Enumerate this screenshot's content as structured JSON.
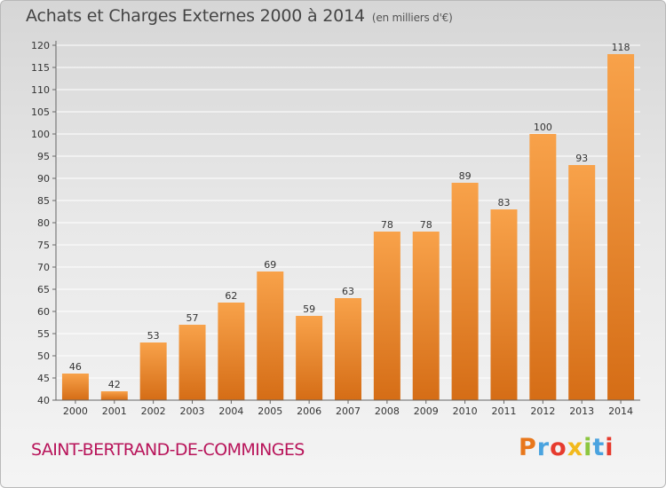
{
  "header": {
    "title": "Achats et Charges Externes 2000 à 2014",
    "unit": "(en milliers d'€)"
  },
  "footer": {
    "commune": "SAINT-BERTRAND-DE-COMMINGES",
    "brand_letters": [
      "P",
      "r",
      "o",
      "x",
      "i",
      "t",
      "i"
    ],
    "brand_colors": [
      "#e8771b",
      "#4aa3df",
      "#e63b2e",
      "#f2b91c",
      "#8cc63f",
      "#4aa3df",
      "#e63b2e"
    ]
  },
  "colors": {
    "bar_top": "#f8a24a",
    "bar_bottom": "#d56d16",
    "grid": "#ffffff",
    "axis": "#666666",
    "label": "#333333"
  },
  "chart_data": {
    "type": "bar",
    "categories": [
      "2000",
      "2001",
      "2002",
      "2003",
      "2004",
      "2005",
      "2006",
      "2007",
      "2008",
      "2009",
      "2010",
      "2011",
      "2012",
      "2013",
      "2014"
    ],
    "values": [
      46,
      42,
      53,
      57,
      62,
      69,
      59,
      63,
      78,
      78,
      89,
      83,
      100,
      93,
      118
    ],
    "title": "Achats et Charges Externes 2000 à 2014",
    "subtitle": "(en milliers d'€)",
    "xlabel": "",
    "ylabel": "",
    "ylim": [
      40,
      120
    ],
    "yticks": [
      40,
      45,
      50,
      55,
      60,
      65,
      70,
      75,
      80,
      85,
      90,
      95,
      100,
      105,
      110,
      115,
      120
    ],
    "grid": true,
    "legend": "none"
  }
}
